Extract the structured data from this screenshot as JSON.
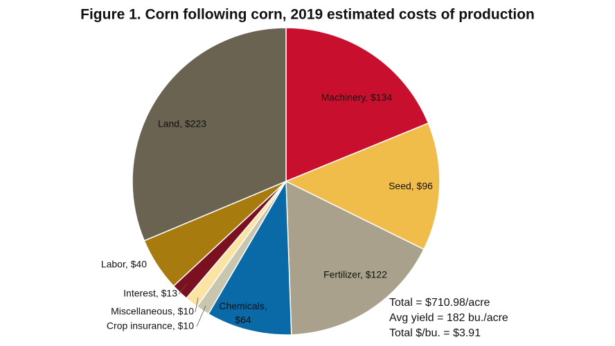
{
  "chart_data": {
    "type": "pie",
    "title": "Figure 1. Corn following corn, 2019 estimated costs of production",
    "values": [
      134,
      96,
      122,
      64,
      10,
      10,
      13,
      40,
      223
    ],
    "value_labels": [
      "Machinery, $134",
      "Seed, $96",
      "Fertilizer, $122",
      "Chemicals,\n$64",
      "Crop insurance, $10",
      "Miscellaneous, $10",
      "Interest, $13",
      "Labor, $40",
      "Land, $223"
    ],
    "colors": [
      "#c8102e",
      "#f0bc4a",
      "#a9a18c",
      "#0a6aa8",
      "#c9c6b0",
      "#fbe3a4",
      "#7a1020",
      "#a77b0e",
      "#6b6352"
    ],
    "annotations": [
      "Total = $710.98/acre",
      "Avg yield = 182 bu./acre",
      "Total $/bu. = $3.91"
    ]
  }
}
